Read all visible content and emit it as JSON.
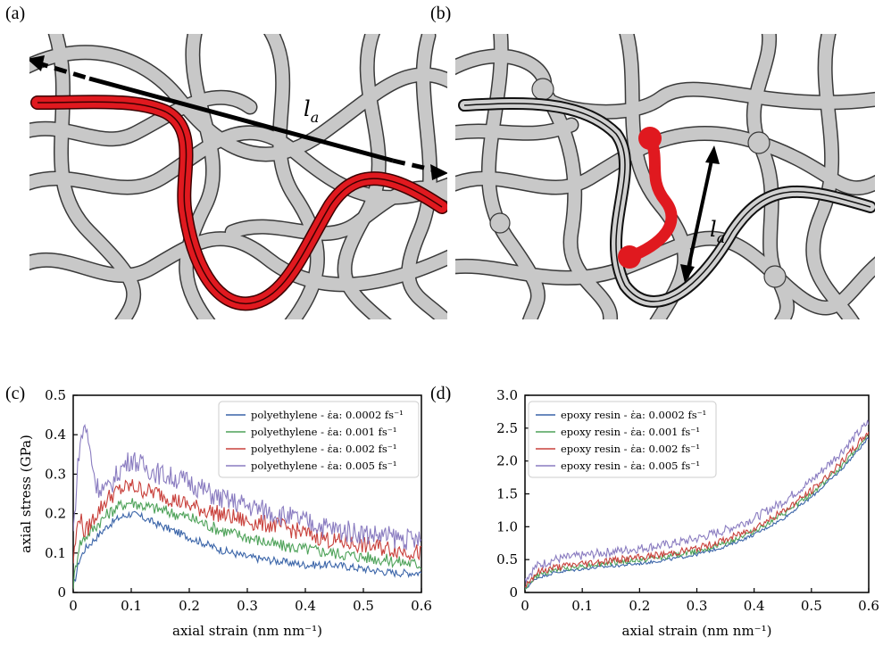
{
  "panels": {
    "a": {
      "label": "(a)",
      "annotation": "l",
      "annotation_sub": "a"
    },
    "b": {
      "label": "(b)",
      "annotation": "l",
      "annotation_sub": "a"
    },
    "c": {
      "label": "(c)"
    },
    "d": {
      "label": "(d)"
    }
  },
  "colors": {
    "chain_fill": "#c8c8c8",
    "chain_highlight": "#e0191f",
    "blue": "#3a64a8",
    "green": "#4ea259",
    "red": "#c8403b",
    "purple": "#8a7cc0"
  },
  "chart_data": [
    {
      "type": "line",
      "panel": "c",
      "xlabel": "axial strain (nm nm⁻¹)",
      "ylabel": "axial stress (GPa)",
      "xlim": [
        0,
        0.6
      ],
      "ylim": [
        0,
        0.5
      ],
      "xticks": [
        "0",
        "0.1",
        "0.2",
        "0.3",
        "0.4",
        "0.5",
        "0.6"
      ],
      "yticks": [
        "0",
        "0.1",
        "0.2",
        "0.3",
        "0.4",
        "0.5"
      ],
      "legend_position": "top-right",
      "series": [
        {
          "name": "polyethylene - ε̇a: 0.0002 fs⁻¹",
          "color": "#3a64a8",
          "x": [
            0,
            0.01,
            0.02,
            0.04,
            0.06,
            0.08,
            0.1,
            0.12,
            0.15,
            0.2,
            0.25,
            0.3,
            0.35,
            0.4,
            0.45,
            0.5,
            0.55,
            0.6
          ],
          "y": [
            0.01,
            0.08,
            0.11,
            0.14,
            0.17,
            0.19,
            0.2,
            0.19,
            0.17,
            0.14,
            0.11,
            0.09,
            0.08,
            0.07,
            0.07,
            0.06,
            0.05,
            0.05
          ]
        },
        {
          "name": "polyethylene - ε̇a: 0.001 fs⁻¹",
          "color": "#4ea259",
          "x": [
            0,
            0.01,
            0.02,
            0.04,
            0.06,
            0.08,
            0.1,
            0.12,
            0.15,
            0.2,
            0.25,
            0.3,
            0.35,
            0.4,
            0.45,
            0.5,
            0.55,
            0.6
          ],
          "y": [
            0.02,
            0.12,
            0.14,
            0.17,
            0.2,
            0.22,
            0.23,
            0.22,
            0.21,
            0.19,
            0.16,
            0.14,
            0.12,
            0.11,
            0.1,
            0.09,
            0.08,
            0.07
          ]
        },
        {
          "name": "polyethylene - ε̇a: 0.002 fs⁻¹",
          "color": "#c8403b",
          "x": [
            0,
            0.01,
            0.02,
            0.04,
            0.06,
            0.08,
            0.1,
            0.12,
            0.15,
            0.2,
            0.25,
            0.3,
            0.35,
            0.4,
            0.45,
            0.5,
            0.55,
            0.6
          ],
          "y": [
            0.08,
            0.2,
            0.15,
            0.2,
            0.24,
            0.26,
            0.27,
            0.26,
            0.25,
            0.22,
            0.2,
            0.18,
            0.17,
            0.15,
            0.13,
            0.12,
            0.11,
            0.1
          ]
        },
        {
          "name": "polyethylene - ε̇a: 0.005 fs⁻¹",
          "color": "#8a7cc0",
          "x": [
            0,
            0.01,
            0.02,
            0.03,
            0.04,
            0.06,
            0.08,
            0.1,
            0.12,
            0.15,
            0.2,
            0.25,
            0.3,
            0.35,
            0.4,
            0.45,
            0.5,
            0.55,
            0.6
          ],
          "y": [
            0.15,
            0.36,
            0.43,
            0.35,
            0.27,
            0.26,
            0.31,
            0.34,
            0.32,
            0.3,
            0.28,
            0.24,
            0.22,
            0.2,
            0.18,
            0.16,
            0.15,
            0.14,
            0.13
          ]
        }
      ]
    },
    {
      "type": "line",
      "panel": "d",
      "xlabel": "axial strain (nm nm⁻¹)",
      "ylabel": "",
      "xlim": [
        0,
        0.6
      ],
      "ylim": [
        0,
        3.0
      ],
      "xticks": [
        "0",
        "0.1",
        "0.2",
        "0.3",
        "0.4",
        "0.5",
        "0.6"
      ],
      "yticks": [
        "0",
        "0.5",
        "1.0",
        "1.5",
        "2.0",
        "2.5",
        "3.0"
      ],
      "legend_position": "top-left",
      "series": [
        {
          "name": "epoxy resin - ε̇a: 0.0002 fs⁻¹",
          "color": "#3a64a8",
          "x": [
            0,
            0.02,
            0.05,
            0.1,
            0.15,
            0.2,
            0.25,
            0.3,
            0.35,
            0.4,
            0.45,
            0.5,
            0.55,
            0.6
          ],
          "y": [
            0.05,
            0.22,
            0.3,
            0.36,
            0.4,
            0.44,
            0.5,
            0.58,
            0.7,
            0.88,
            1.12,
            1.45,
            1.85,
            2.35
          ]
        },
        {
          "name": "epoxy resin - ε̇a: 0.001 fs⁻¹",
          "color": "#4ea259",
          "x": [
            0,
            0.02,
            0.05,
            0.1,
            0.15,
            0.2,
            0.25,
            0.3,
            0.35,
            0.4,
            0.45,
            0.5,
            0.55,
            0.6
          ],
          "y": [
            0.07,
            0.25,
            0.34,
            0.4,
            0.45,
            0.49,
            0.55,
            0.63,
            0.75,
            0.93,
            1.18,
            1.5,
            1.9,
            2.4
          ]
        },
        {
          "name": "epoxy resin - ε̇a: 0.002 fs⁻¹",
          "color": "#c8403b",
          "x": [
            0,
            0.02,
            0.05,
            0.1,
            0.15,
            0.2,
            0.25,
            0.3,
            0.35,
            0.4,
            0.45,
            0.5,
            0.55,
            0.6
          ],
          "y": [
            0.1,
            0.3,
            0.38,
            0.44,
            0.49,
            0.53,
            0.59,
            0.67,
            0.8,
            0.98,
            1.23,
            1.55,
            1.95,
            2.45
          ]
        },
        {
          "name": "epoxy resin - ε̇a: 0.005 fs⁻¹",
          "color": "#8a7cc0",
          "x": [
            0,
            0.02,
            0.05,
            0.1,
            0.15,
            0.2,
            0.25,
            0.3,
            0.35,
            0.4,
            0.45,
            0.5,
            0.55,
            0.6
          ],
          "y": [
            0.2,
            0.4,
            0.5,
            0.56,
            0.62,
            0.67,
            0.73,
            0.82,
            0.95,
            1.13,
            1.38,
            1.7,
            2.12,
            2.6
          ]
        }
      ]
    }
  ]
}
